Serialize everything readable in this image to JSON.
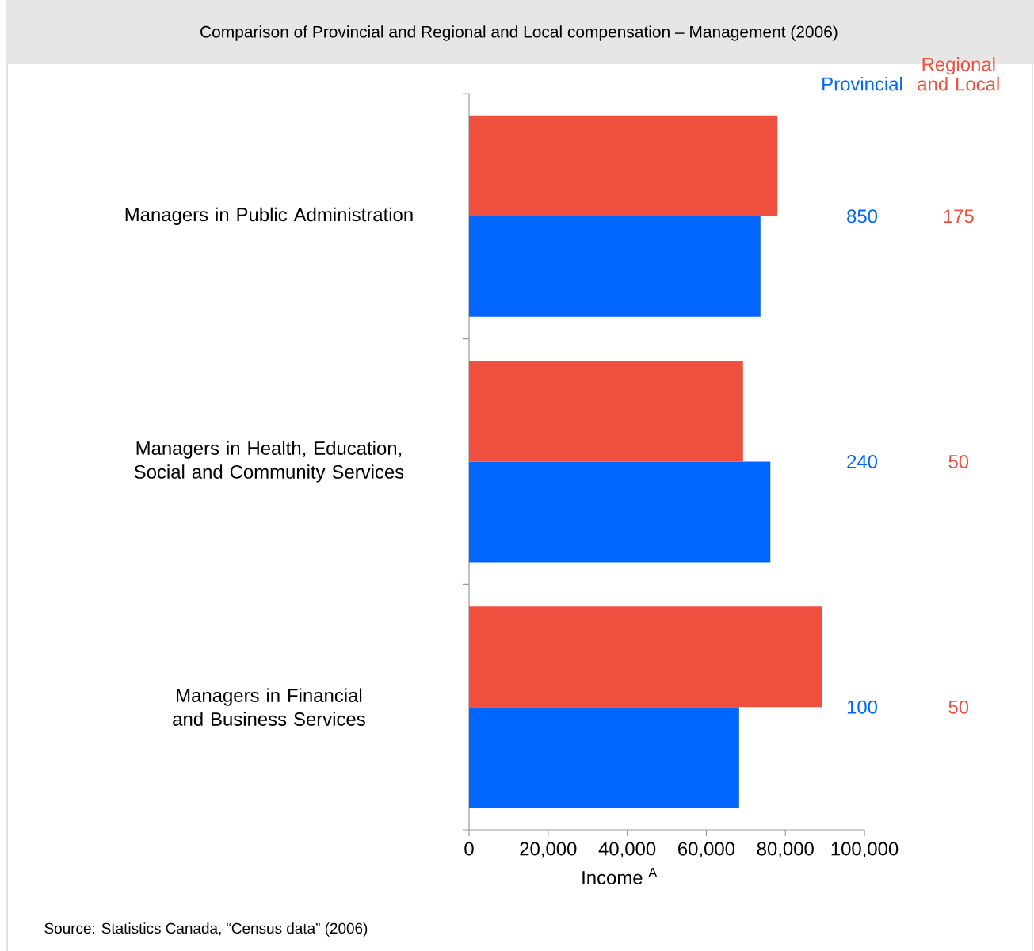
{
  "chart_data": {
    "type": "bar",
    "orientation": "horizontal",
    "title": "Comparison of Provincial and Regional and Local compensation – Management (2006)",
    "categories": [
      "Managers in Public Administration",
      "Managers in Health, Education, Social and Community Services",
      "Managers in Financial and Business Services"
    ],
    "series": [
      {
        "name": "Provincial",
        "color": "#0066ff",
        "values": [
          73700,
          76200,
          68300
        ]
      },
      {
        "name": "Regional and Local",
        "color": "#ef4f3f",
        "values": [
          78000,
          69300,
          89200
        ]
      }
    ],
    "xlabel": "Income $^{A}$",
    "xlim": [
      0,
      100000
    ],
    "xticks": [
      0,
      {
        "value": 20000,
        "label": "20,000"
      },
      {
        "value": 40000,
        "label": "40,000"
      },
      {
        "value": 60000,
        "label": "60,000"
      },
      {
        "value": 80000,
        "label": "80,000"
      },
      {
        "value": 100000,
        "label": "100,000"
      }
    ],
    "annotations": [
      "Source: Statistics Canada, “Census data” (2006)",
      "850",
      "175",
      "240",
      "50",
      "100",
      "50"
    ]
  }
}
